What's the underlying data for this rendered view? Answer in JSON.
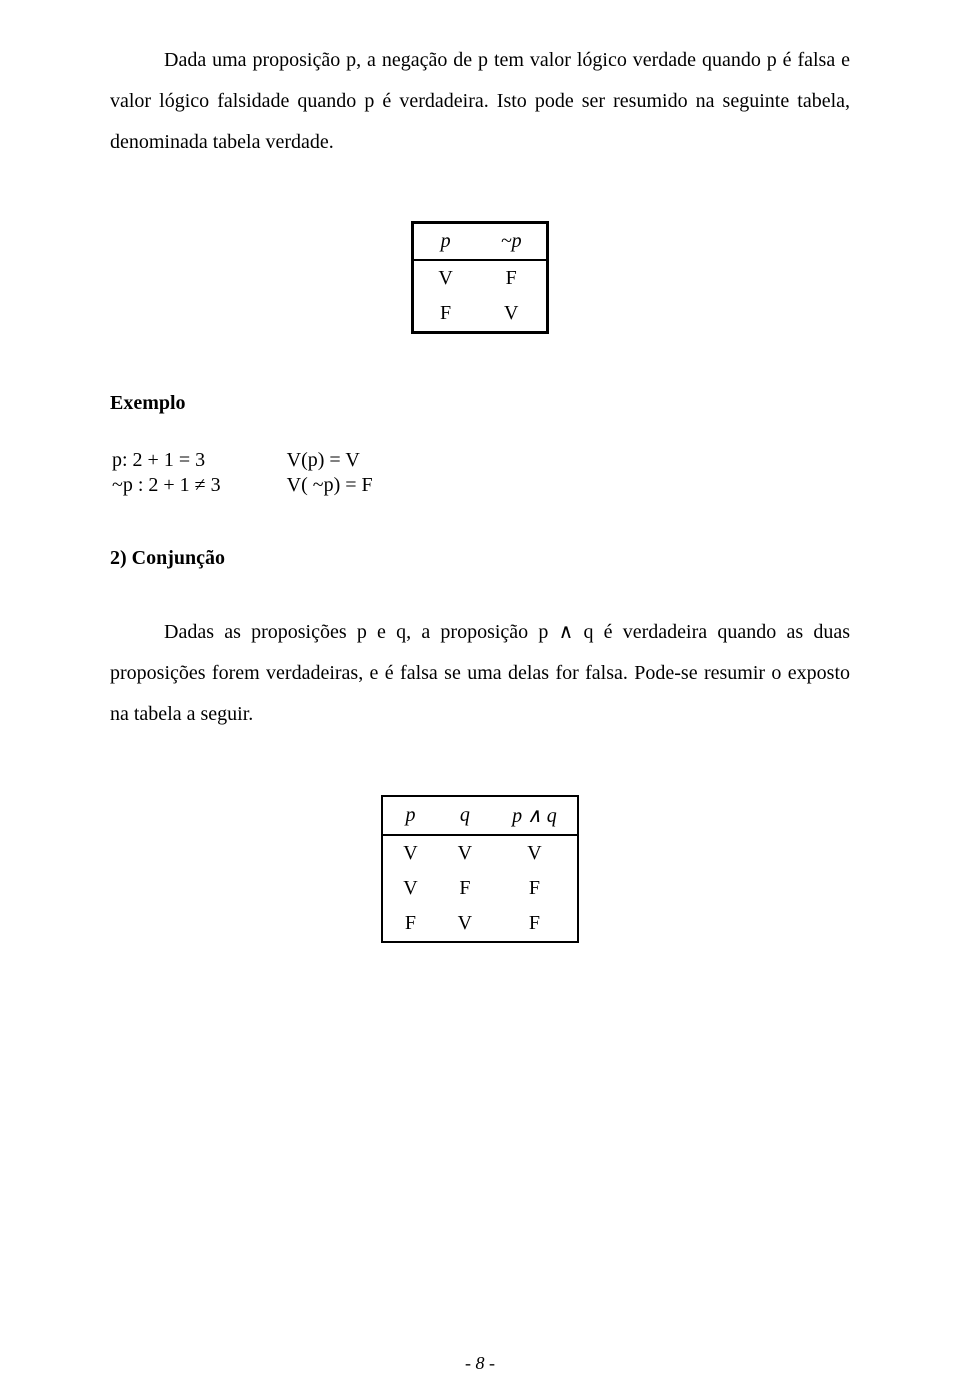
{
  "text": {
    "para1": "Dada uma proposição  p,  a negação de p  tem valor lógico verdade quando p é falsa  e valor lógico falsidade quando   p   é verdadeira. Isto pode ser resumido na seguinte tabela,  denominada tabela verdade.",
    "exemplo_heading": "Exemplo",
    "ex_l1_a": "p: 2 + 1 = 3",
    "ex_l1_b": "V(p) = V",
    "ex_l2_a": "~p : 2 + 1 ≠ 3",
    "ex_l2_b": "V( ~p) = F",
    "subsection": "2) Conjunção",
    "para2": "Dadas as proposições  p  e  q,  a proposição  p ∧ q  é verdadeira quando as duas proposições forem verdadeiras, e é falsa se uma delas for falsa. Pode-se resumir o exposto na tabela  a seguir.",
    "page_num": "- 8 -"
  },
  "table1": {
    "headers": [
      "p",
      "~p"
    ],
    "rows": [
      [
        "V",
        "F"
      ],
      [
        "F",
        "V"
      ]
    ]
  },
  "table2": {
    "headers": [
      "p",
      "q",
      "p ∧ q"
    ],
    "rows": [
      [
        "V",
        "V",
        "V"
      ],
      [
        "V",
        "F",
        "F"
      ],
      [
        "F",
        "V",
        "F"
      ]
    ]
  }
}
